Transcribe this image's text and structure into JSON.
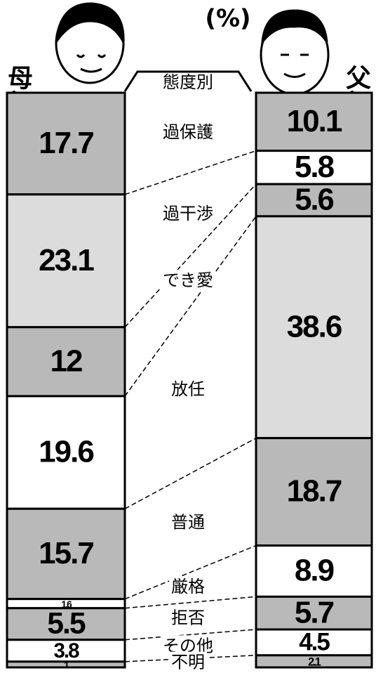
{
  "chart_data": {
    "type": "stacked-column",
    "title": "(%)",
    "header": "態度別",
    "categories": [
      "過保護",
      "過干渉",
      "でき愛",
      "放任",
      "普通",
      "厳格",
      "拒否",
      "その他",
      "不明"
    ],
    "series": [
      {
        "name": "母親",
        "values": [
          17.7,
          23.1,
          12.0,
          19.6,
          15.7,
          1.6,
          5.5,
          3.8,
          1.0
        ],
        "colors": [
          "#b9b9b9",
          "#dcdcdc",
          "#b9b9b9",
          "#ffffff",
          "#b9b9b9",
          "#ffffff",
          "#b9b9b9",
          "#ffffff",
          "#b9b9b9"
        ]
      },
      {
        "name": "父親",
        "values": [
          10.1,
          5.8,
          5.6,
          38.6,
          18.7,
          8.9,
          5.7,
          4.5,
          2.1
        ],
        "colors": [
          "#b9b9b9",
          "#ffffff",
          "#b9b9b9",
          "#dcdcdc",
          "#b9b9b9",
          "#ffffff",
          "#b9b9b9",
          "#ffffff",
          "#b9b9b9"
        ]
      }
    ]
  }
}
